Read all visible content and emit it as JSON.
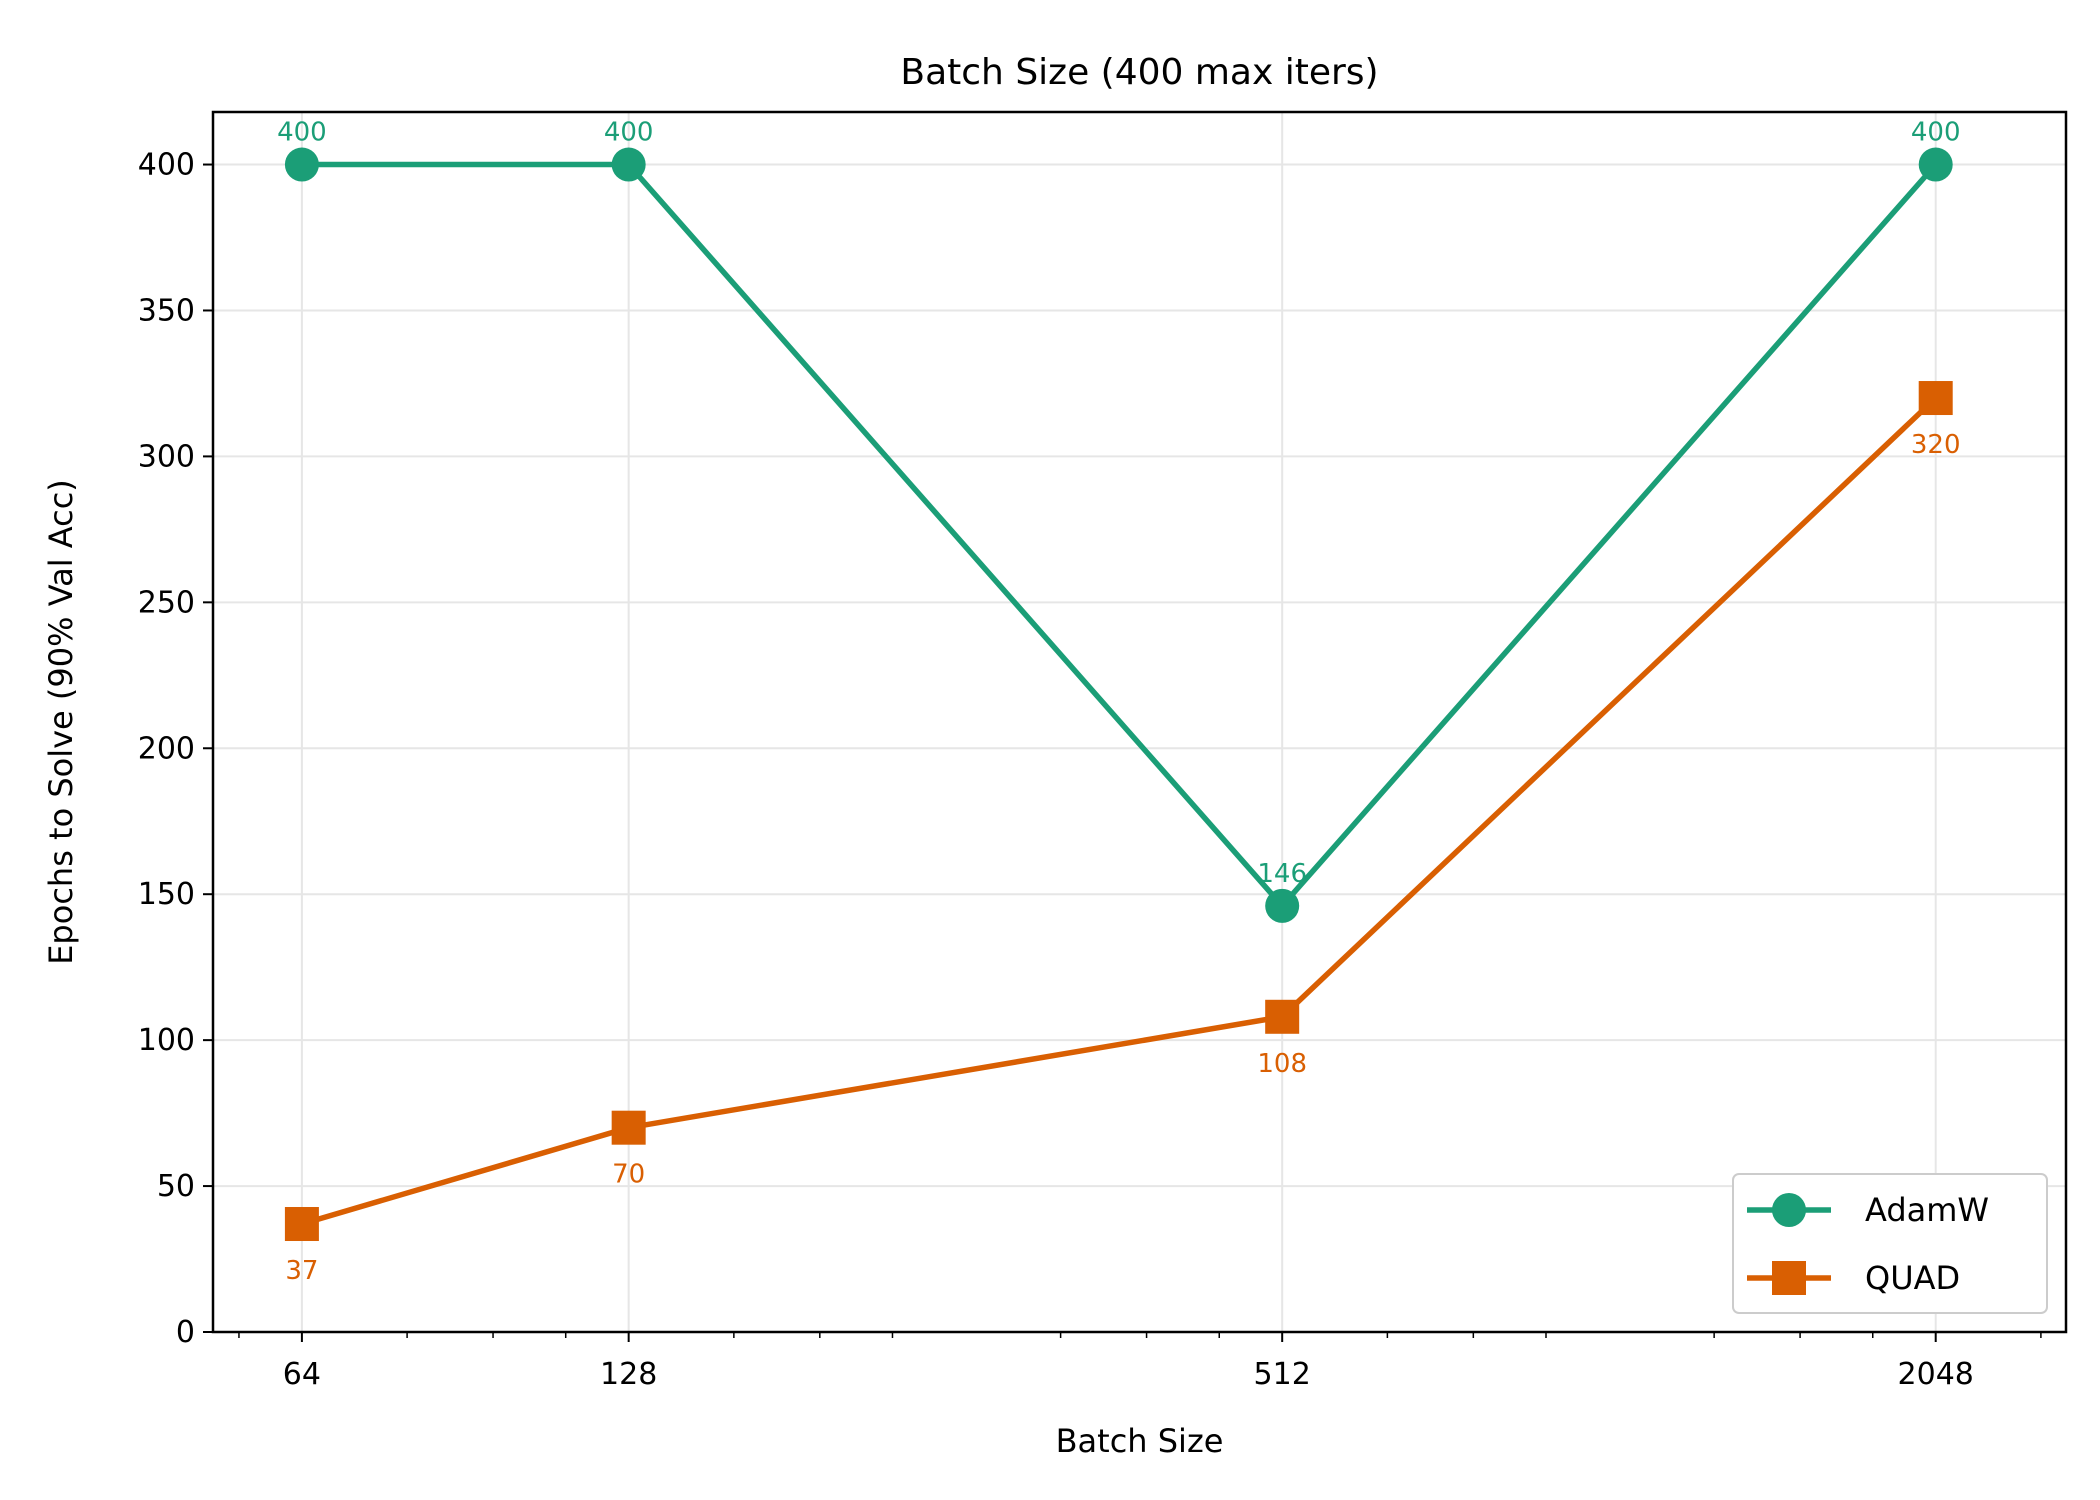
{
  "chart_data": {
    "type": "line",
    "title": "Batch Size (400 max iters)",
    "xlabel": "Batch Size",
    "ylabel": "Epochs to Solve (90% Val Acc)",
    "x_scale": "log2",
    "x": [
      64,
      128,
      512,
      2048
    ],
    "x_tick_labels": [
      "64",
      "128",
      "512",
      "2048"
    ],
    "xlim": [
      53,
      2700
    ],
    "ylim": [
      0,
      418
    ],
    "y_ticks": [
      0,
      50,
      100,
      150,
      200,
      250,
      300,
      350,
      400
    ],
    "y_tick_labels": [
      "0",
      "50",
      "100",
      "150",
      "200",
      "250",
      "300",
      "350",
      "400"
    ],
    "grid": true,
    "legend_position": "lower right",
    "series": [
      {
        "name": "AdamW",
        "values": [
          400,
          400,
          146,
          400
        ],
        "data_labels": [
          "400",
          "400",
          "146",
          "400"
        ],
        "color": "#1b9e77",
        "marker": "circle",
        "label_position": "above"
      },
      {
        "name": "QUAD",
        "values": [
          37,
          70,
          108,
          320
        ],
        "data_labels": [
          "37",
          "70",
          "108",
          "320"
        ],
        "color": "#d95f02",
        "marker": "square",
        "label_position": "below"
      }
    ]
  }
}
